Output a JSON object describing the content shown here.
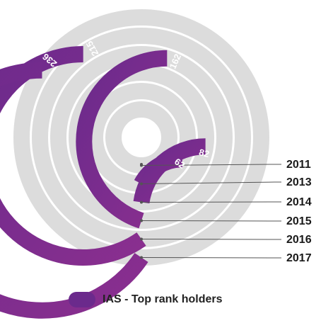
{
  "chart_data": {
    "type": "radial-bar",
    "rings": [
      {
        "year": "2011",
        "value": null
      },
      {
        "year": "2013",
        "value": 62
      },
      {
        "year": "2014",
        "value": 82
      },
      {
        "year": "2015",
        "value": 162
      },
      {
        "year": "2016",
        "value": 215
      },
      {
        "year": "2017",
        "value": 236
      }
    ],
    "full_circle_value": 360,
    "series": [
      {
        "name": "IAS - Top rank holders"
      }
    ],
    "colors": {
      "bar": "#6b2a8c",
      "bar_end": "#8a2f8f",
      "track": "#dcdcdc",
      "leader": "#555555"
    }
  },
  "legend": {
    "label": "IAS - Top rank holders"
  }
}
